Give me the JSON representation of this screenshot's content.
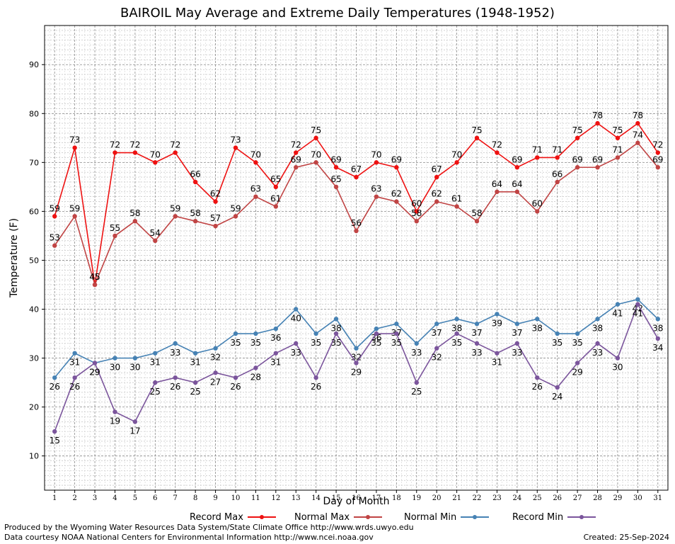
{
  "chart_data": {
    "type": "line",
    "title": "BAIROIL May Average and Extreme Daily Temperatures (1948-1952)",
    "xlabel": "Day of Month",
    "ylabel": "Temperature (F)",
    "x": [
      1,
      2,
      3,
      4,
      5,
      6,
      7,
      8,
      9,
      10,
      11,
      12,
      13,
      14,
      15,
      16,
      17,
      18,
      19,
      20,
      21,
      22,
      23,
      24,
      25,
      26,
      27,
      28,
      29,
      30,
      31
    ],
    "xlim": [
      0.5,
      31.5
    ],
    "ylim": [
      3,
      98
    ],
    "yticks": [
      10,
      20,
      30,
      40,
      50,
      60,
      70,
      80,
      90
    ],
    "grid": true,
    "legend_position": "bottom",
    "series": [
      {
        "name": "Record Max",
        "color": "#ee1111",
        "label_position": "above",
        "values": [
          59,
          73,
          45,
          72,
          72,
          70,
          72,
          66,
          62,
          73,
          70,
          65,
          72,
          75,
          69,
          67,
          70,
          69,
          60,
          67,
          70,
          75,
          72,
          69,
          71,
          71,
          75,
          78,
          75,
          78,
          72
        ]
      },
      {
        "name": "Normal Max",
        "color": "#c04444",
        "label_position": "above",
        "values": [
          53,
          59,
          45,
          55,
          58,
          54,
          59,
          58,
          57,
          59,
          63,
          61,
          69,
          70,
          65,
          56,
          63,
          62,
          58,
          62,
          61,
          58,
          64,
          64,
          60,
          66,
          69,
          69,
          71,
          74,
          69
        ]
      },
      {
        "name": "Normal Min",
        "color": "#4682b4",
        "label_position": "below",
        "values": [
          26,
          31,
          29,
          30,
          30,
          31,
          33,
          31,
          32,
          35,
          35,
          36,
          40,
          35,
          38,
          32,
          36,
          37,
          33,
          37,
          38,
          37,
          39,
          37,
          38,
          35,
          35,
          38,
          41,
          42,
          38
        ]
      },
      {
        "name": "Record Min",
        "color": "#7b559c",
        "label_position": "below",
        "values": [
          15,
          26,
          29,
          19,
          17,
          25,
          26,
          25,
          27,
          26,
          28,
          31,
          33,
          26,
          35,
          29,
          35,
          35,
          25,
          32,
          35,
          33,
          31,
          33,
          26,
          24,
          29,
          33,
          30,
          41,
          34
        ]
      }
    ]
  },
  "footer": {
    "produced": "Produced by the Wyoming Water Resources Data System/State Climate Office http://www.wrds.uwyo.edu",
    "courtesy": "Data courtesy NOAA National Centers for Environmental Information http://www.ncei.noaa.gov",
    "created": "Created: 25-Sep-2024"
  }
}
